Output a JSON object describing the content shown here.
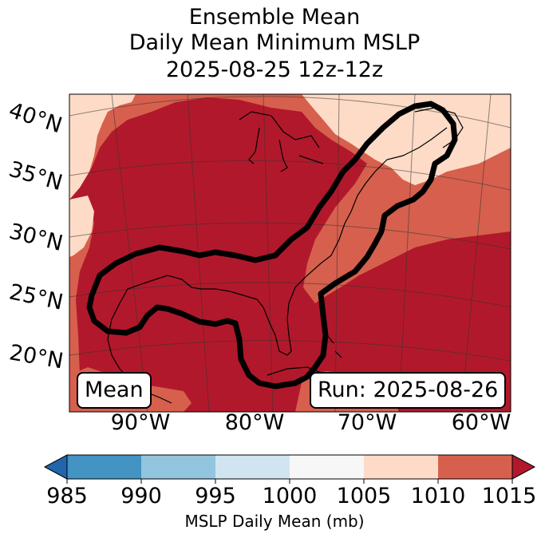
{
  "title": {
    "line1": "Ensemble Mean",
    "line2": "Daily Mean Minimum MSLP",
    "line3": "2025-08-25 12z-12z"
  },
  "map": {
    "lat_labels": [
      "40°N",
      "35°N",
      "30°N",
      "25°N",
      "20°N"
    ],
    "lon_labels": [
      "90°W",
      "80°W",
      "70°W",
      "60°W"
    ],
    "left_box": "Mean",
    "right_box": "Run: 2025-08-26",
    "contour_color": "#000000",
    "fill_colors": {
      "band_1005_1010": "#fddbc7",
      "band_1010_1015": "#d6604d",
      "band_above_1015": "#b2182b"
    }
  },
  "colorbar": {
    "title": "MSLP Daily Mean (mb)",
    "ticks": [
      "985",
      "990",
      "995",
      "1000",
      "1005",
      "1010",
      "1015"
    ],
    "under_color": "#2166ac",
    "over_color": "#b2182b",
    "segments": [
      {
        "range": "985-990",
        "color": "#4393c3"
      },
      {
        "range": "990-995",
        "color": "#92c5de"
      },
      {
        "range": "995-1000",
        "color": "#d1e5f0"
      },
      {
        "range": "1000-1005",
        "color": "#f7f7f7"
      },
      {
        "range": "1005-1010",
        "color": "#fddbc7"
      },
      {
        "range": "1010-1015",
        "color": "#d6604d"
      }
    ]
  }
}
